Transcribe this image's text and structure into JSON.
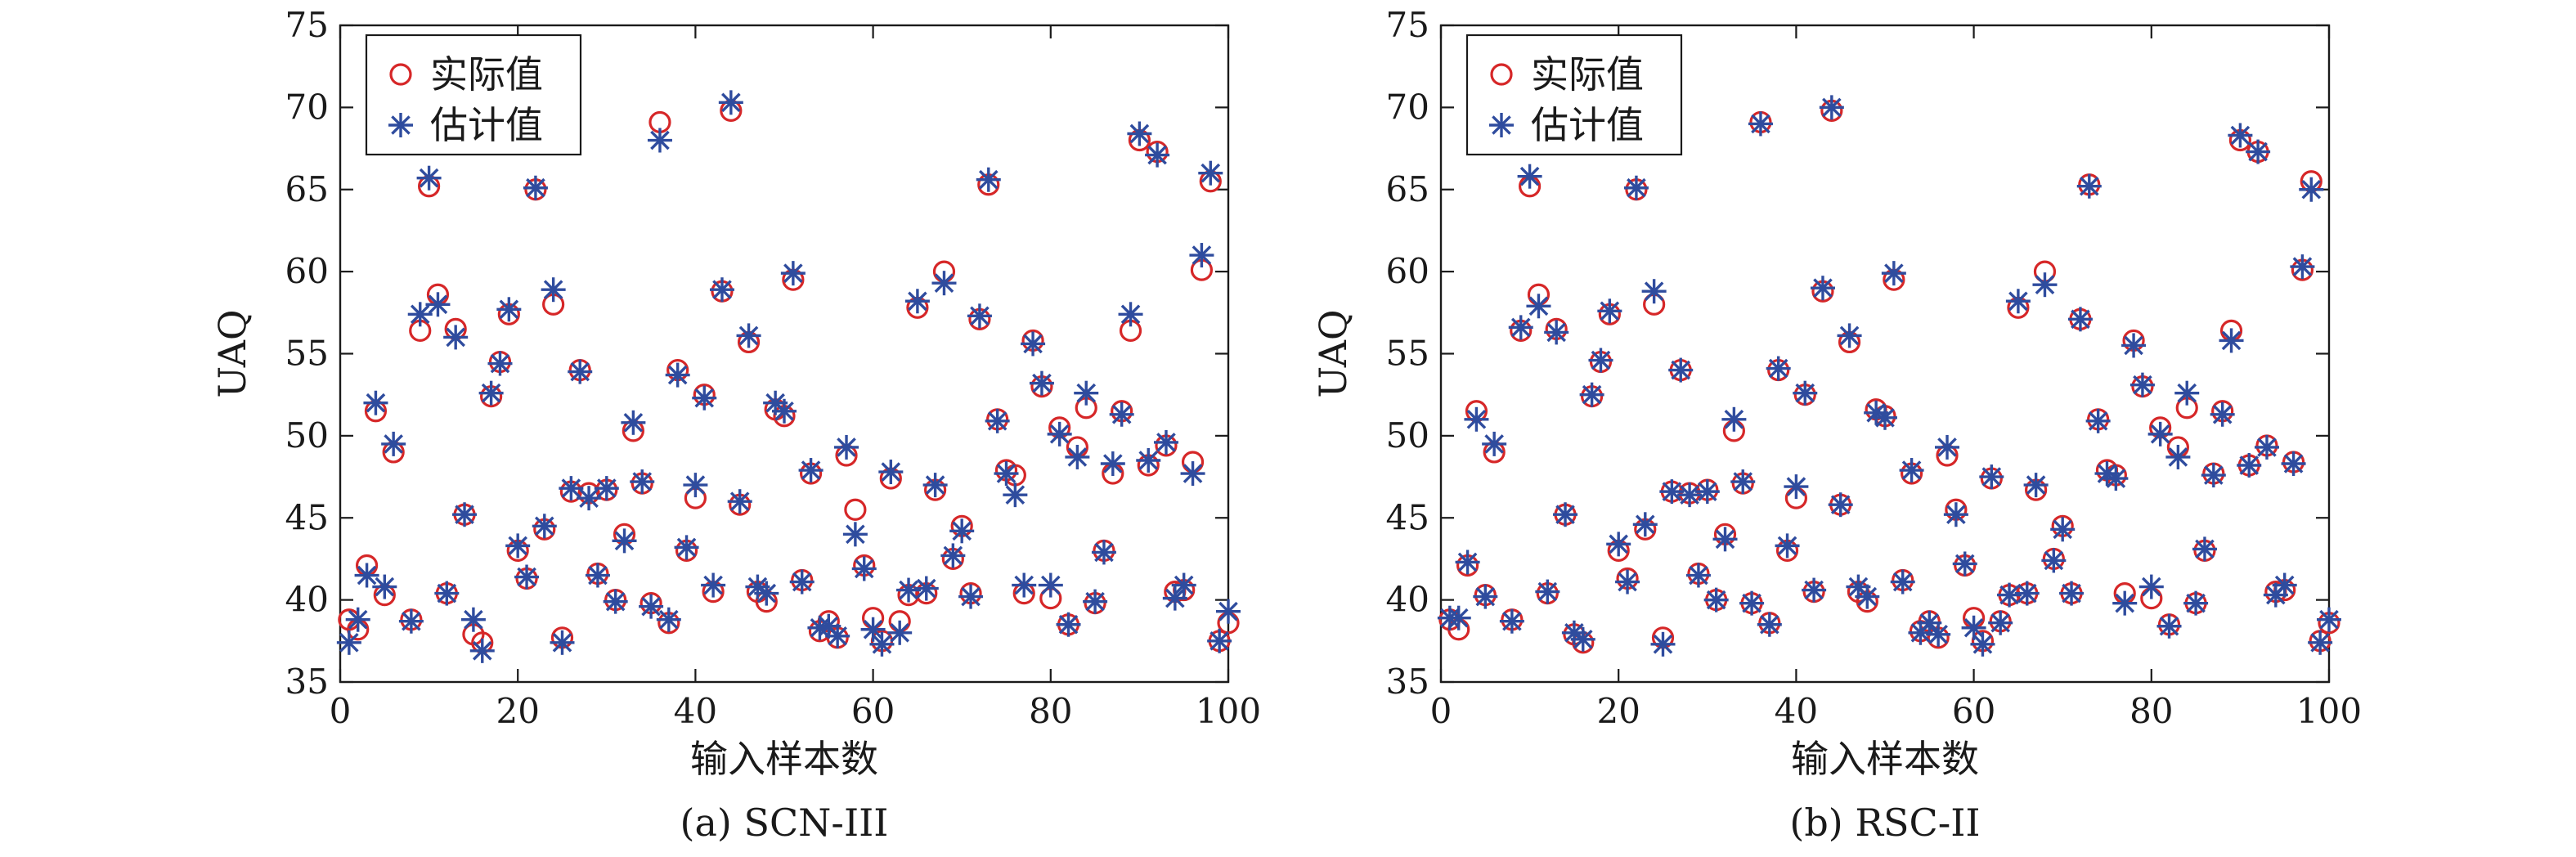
{
  "chart_data": [
    {
      "type": "scatter",
      "caption": "(a) SCN-III",
      "xlabel": "输入样本数",
      "ylabel": "UAQ",
      "xlim": [
        0,
        100
      ],
      "ylim": [
        35,
        75
      ],
      "xticks": [
        "0",
        "20",
        "40",
        "60",
        "80",
        "100"
      ],
      "yticks": [
        "35",
        "40",
        "45",
        "50",
        "55",
        "60",
        "65",
        "70",
        "75"
      ],
      "legend_position": "top-left",
      "series": [
        {
          "name": "实际值",
          "marker": "circle",
          "color": "#d62728",
          "x": [
            1,
            2,
            3,
            4,
            5,
            6,
            8,
            9,
            10,
            11,
            12,
            13,
            14,
            15,
            16,
            17,
            18,
            19,
            20,
            21,
            22,
            23,
            24,
            25,
            26,
            27,
            28,
            29,
            30,
            31,
            32,
            33,
            34,
            35,
            36,
            37,
            38,
            39,
            40,
            41,
            42,
            43,
            44,
            45,
            46,
            47,
            48,
            49,
            50,
            51,
            52,
            53,
            54,
            55,
            56,
            57,
            58,
            59,
            60,
            61,
            62,
            63,
            64,
            65,
            66,
            67,
            68,
            69,
            70,
            71,
            72,
            73,
            74,
            75,
            76,
            77,
            78,
            79,
            80,
            81,
            82,
            83,
            84,
            85,
            86,
            87,
            88,
            89,
            90,
            91,
            92,
            93,
            94,
            95,
            96,
            97,
            98,
            99,
            100
          ],
          "y": [
            38.8,
            38.2,
            42.1,
            51.5,
            40.3,
            49.0,
            38.8,
            56.4,
            65.2,
            58.6,
            40.4,
            56.5,
            45.2,
            37.9,
            37.4,
            52.4,
            54.5,
            57.4,
            43.0,
            41.3,
            65.0,
            44.3,
            58.0,
            37.7,
            46.6,
            54.0,
            46.5,
            41.6,
            46.7,
            40.0,
            44.0,
            50.3,
            47.1,
            39.8,
            69.1,
            38.6,
            54.0,
            43.0,
            46.2,
            52.5,
            40.5,
            58.8,
            69.8,
            45.8,
            55.7,
            40.5,
            39.9,
            51.6,
            51.2,
            59.5,
            41.2,
            47.7,
            38.1,
            38.7,
            37.7,
            48.8,
            45.5,
            42.1,
            38.9,
            37.5,
            47.4,
            38.7,
            40.3,
            57.8,
            40.4,
            46.7,
            60.0,
            42.5,
            44.5,
            40.4,
            57.1,
            65.3,
            51.0,
            47.9,
            47.6,
            40.4,
            55.8,
            53.0,
            40.1,
            50.5,
            38.5,
            49.3,
            51.7,
            39.8,
            43.0,
            47.7,
            51.5,
            56.4,
            68.0,
            48.2,
            67.3,
            49.4,
            40.5,
            40.6,
            48.4,
            60.1,
            65.5,
            37.5,
            38.6
          ]
        },
        {
          "name": "估计值",
          "marker": "asterisk",
          "color": "#2f4c9e",
          "x": [
            1,
            2,
            3,
            4,
            5,
            6,
            8,
            9,
            10,
            11,
            12,
            13,
            14,
            15,
            16,
            17,
            18,
            19,
            20,
            21,
            22,
            23,
            24,
            25,
            26,
            27,
            28,
            29,
            30,
            31,
            32,
            33,
            34,
            35,
            36,
            37,
            38,
            39,
            40,
            41,
            42,
            43,
            44,
            45,
            46,
            47,
            48,
            49,
            50,
            51,
            52,
            53,
            54,
            55,
            56,
            57,
            58,
            59,
            60,
            61,
            62,
            63,
            64,
            65,
            66,
            67,
            68,
            69,
            70,
            71,
            72,
            73,
            74,
            75,
            76,
            77,
            78,
            79,
            80,
            81,
            82,
            83,
            84,
            85,
            86,
            87,
            88,
            89,
            90,
            91,
            92,
            93,
            94,
            95,
            96,
            97,
            98,
            99,
            100
          ],
          "y": [
            37.4,
            38.8,
            41.5,
            52.0,
            40.8,
            49.5,
            38.7,
            57.4,
            65.7,
            58.0,
            40.4,
            56.0,
            45.2,
            38.8,
            36.9,
            52.6,
            54.4,
            57.7,
            43.3,
            41.4,
            65.1,
            44.5,
            58.9,
            37.4,
            46.8,
            53.9,
            46.2,
            41.5,
            46.8,
            39.9,
            43.6,
            50.8,
            47.2,
            39.6,
            68.0,
            38.8,
            53.7,
            43.2,
            47.0,
            52.3,
            40.9,
            58.9,
            70.3,
            46.0,
            56.1,
            40.8,
            40.4,
            52.0,
            51.5,
            59.9,
            41.1,
            47.9,
            38.3,
            38.4,
            37.8,
            49.3,
            44.0,
            41.9,
            38.2,
            37.3,
            47.8,
            38.0,
            40.6,
            58.2,
            40.7,
            47.0,
            59.3,
            42.7,
            44.2,
            40.2,
            57.3,
            65.6,
            50.9,
            47.7,
            46.4,
            40.9,
            55.6,
            53.2,
            40.9,
            50.1,
            38.5,
            48.7,
            52.6,
            39.9,
            42.9,
            48.3,
            51.3,
            57.4,
            68.4,
            48.5,
            67.1,
            49.6,
            40.1,
            40.9,
            47.7,
            61.0,
            66.0,
            37.5,
            39.3
          ]
        }
      ]
    },
    {
      "type": "scatter",
      "caption": "(b) RSC-II",
      "xlabel": "输入样本数",
      "ylabel": "UAQ",
      "xlim": [
        0,
        100
      ],
      "ylim": [
        35,
        75
      ],
      "xticks": [
        "0",
        "20",
        "40",
        "60",
        "80",
        "100"
      ],
      "yticks": [
        "35",
        "40",
        "45",
        "50",
        "55",
        "60",
        "65",
        "70",
        "75"
      ],
      "legend_position": "top-left",
      "series": [
        {
          "name": "实际值",
          "marker": "circle",
          "color": "#d62728",
          "x": [
            1,
            2,
            3,
            4,
            5,
            6,
            8,
            9,
            10,
            11,
            12,
            13,
            14,
            15,
            16,
            17,
            18,
            19,
            20,
            21,
            22,
            23,
            24,
            25,
            26,
            27,
            28,
            29,
            30,
            31,
            32,
            33,
            34,
            35,
            36,
            37,
            38,
            39,
            40,
            41,
            42,
            43,
            44,
            45,
            46,
            47,
            48,
            49,
            50,
            51,
            52,
            53,
            54,
            55,
            56,
            57,
            58,
            59,
            60,
            61,
            62,
            63,
            64,
            65,
            66,
            67,
            68,
            69,
            70,
            71,
            72,
            73,
            74,
            75,
            76,
            77,
            78,
            79,
            80,
            81,
            82,
            83,
            84,
            85,
            86,
            87,
            88,
            89,
            90,
            91,
            92,
            93,
            94,
            95,
            96,
            97,
            98,
            99,
            100
          ],
          "y": [
            38.8,
            38.2,
            42.1,
            51.5,
            40.3,
            49.0,
            38.8,
            56.4,
            65.2,
            58.6,
            40.4,
            56.5,
            45.2,
            37.9,
            37.4,
            52.4,
            54.5,
            57.4,
            43.0,
            41.3,
            65.0,
            44.3,
            58.0,
            37.7,
            46.6,
            54.0,
            46.5,
            41.6,
            46.7,
            40.0,
            44.0,
            50.3,
            47.1,
            39.8,
            69.1,
            38.6,
            54.0,
            43.0,
            46.2,
            52.5,
            40.5,
            58.8,
            69.8,
            45.8,
            55.7,
            40.5,
            39.9,
            51.6,
            51.2,
            59.5,
            41.2,
            47.7,
            38.1,
            38.7,
            37.7,
            48.8,
            45.5,
            42.1,
            38.9,
            37.5,
            47.4,
            38.7,
            40.3,
            57.8,
            40.4,
            46.7,
            60.0,
            42.5,
            44.5,
            40.4,
            57.1,
            65.3,
            51.0,
            47.9,
            47.6,
            40.4,
            55.8,
            53.0,
            40.1,
            50.5,
            38.5,
            49.3,
            51.7,
            39.8,
            43.0,
            47.7,
            51.5,
            56.4,
            68.0,
            48.2,
            67.3,
            49.4,
            40.5,
            40.6,
            48.4,
            60.1,
            65.5,
            37.5,
            38.6
          ]
        },
        {
          "name": "估计值",
          "marker": "asterisk",
          "color": "#2f4c9e",
          "x": [
            1,
            2,
            3,
            4,
            5,
            6,
            8,
            9,
            10,
            11,
            12,
            13,
            14,
            15,
            16,
            17,
            18,
            19,
            20,
            21,
            22,
            23,
            24,
            25,
            26,
            27,
            28,
            29,
            30,
            31,
            32,
            33,
            34,
            35,
            36,
            37,
            38,
            39,
            40,
            41,
            42,
            43,
            44,
            45,
            46,
            47,
            48,
            49,
            50,
            51,
            52,
            53,
            54,
            55,
            56,
            57,
            58,
            59,
            60,
            61,
            62,
            63,
            64,
            65,
            66,
            67,
            68,
            69,
            70,
            71,
            72,
            73,
            74,
            75,
            76,
            77,
            78,
            79,
            80,
            81,
            82,
            83,
            84,
            85,
            86,
            87,
            88,
            89,
            90,
            91,
            92,
            93,
            94,
            95,
            96,
            97,
            98,
            99,
            100
          ],
          "y": [
            38.9,
            38.9,
            42.3,
            51.0,
            40.2,
            49.5,
            38.7,
            56.6,
            65.8,
            57.9,
            40.5,
            56.3,
            45.2,
            38.0,
            37.6,
            52.5,
            54.6,
            57.6,
            43.4,
            41.1,
            65.1,
            44.6,
            58.8,
            37.3,
            46.6,
            54.0,
            46.4,
            41.5,
            46.6,
            40.0,
            43.7,
            51.0,
            47.2,
            39.8,
            69.0,
            38.5,
            54.1,
            43.3,
            46.9,
            52.6,
            40.6,
            59.0,
            70.0,
            45.8,
            56.1,
            40.8,
            40.2,
            51.4,
            51.1,
            59.9,
            41.1,
            47.9,
            38.0,
            38.6,
            37.9,
            49.3,
            45.2,
            42.2,
            38.3,
            37.3,
            47.5,
            38.6,
            40.3,
            58.2,
            40.4,
            47.0,
            59.2,
            42.4,
            44.3,
            40.4,
            57.1,
            65.2,
            50.9,
            47.7,
            47.4,
            39.8,
            55.5,
            53.1,
            40.8,
            50.1,
            38.4,
            48.7,
            52.6,
            39.8,
            43.1,
            47.6,
            51.3,
            55.8,
            68.3,
            48.2,
            67.3,
            49.3,
            40.3,
            40.9,
            48.3,
            60.3,
            65.0,
            37.4,
            38.8
          ]
        }
      ]
    }
  ]
}
